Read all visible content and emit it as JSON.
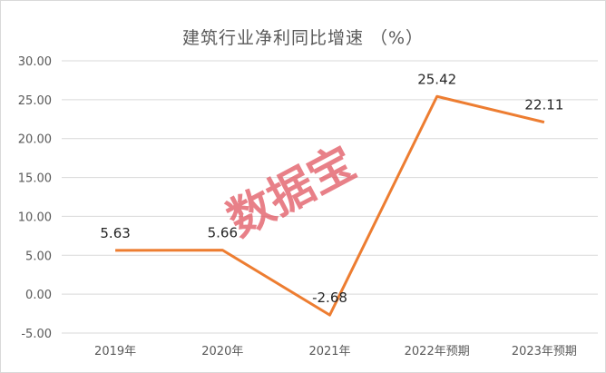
{
  "chart_data": {
    "type": "line",
    "title": "建筑行业净利同比增速 （%）",
    "categories": [
      "2019年",
      "2020年",
      "2021年",
      "2022年预期",
      "2023年预期"
    ],
    "series": [
      {
        "values": [
          5.63,
          5.66,
          -2.68,
          25.42,
          22.11
        ]
      }
    ],
    "data_labels": [
      "5.63",
      "5.66",
      "-2.68",
      "25.42",
      "22.11"
    ],
    "ylim": [
      -5,
      30
    ],
    "yticks": [
      "-5.00",
      "0.00",
      "5.00",
      "10.00",
      "15.00",
      "20.00",
      "25.00",
      "30.00"
    ],
    "grid": true,
    "line_color": "#ed7d31",
    "watermark": "数据宝"
  }
}
